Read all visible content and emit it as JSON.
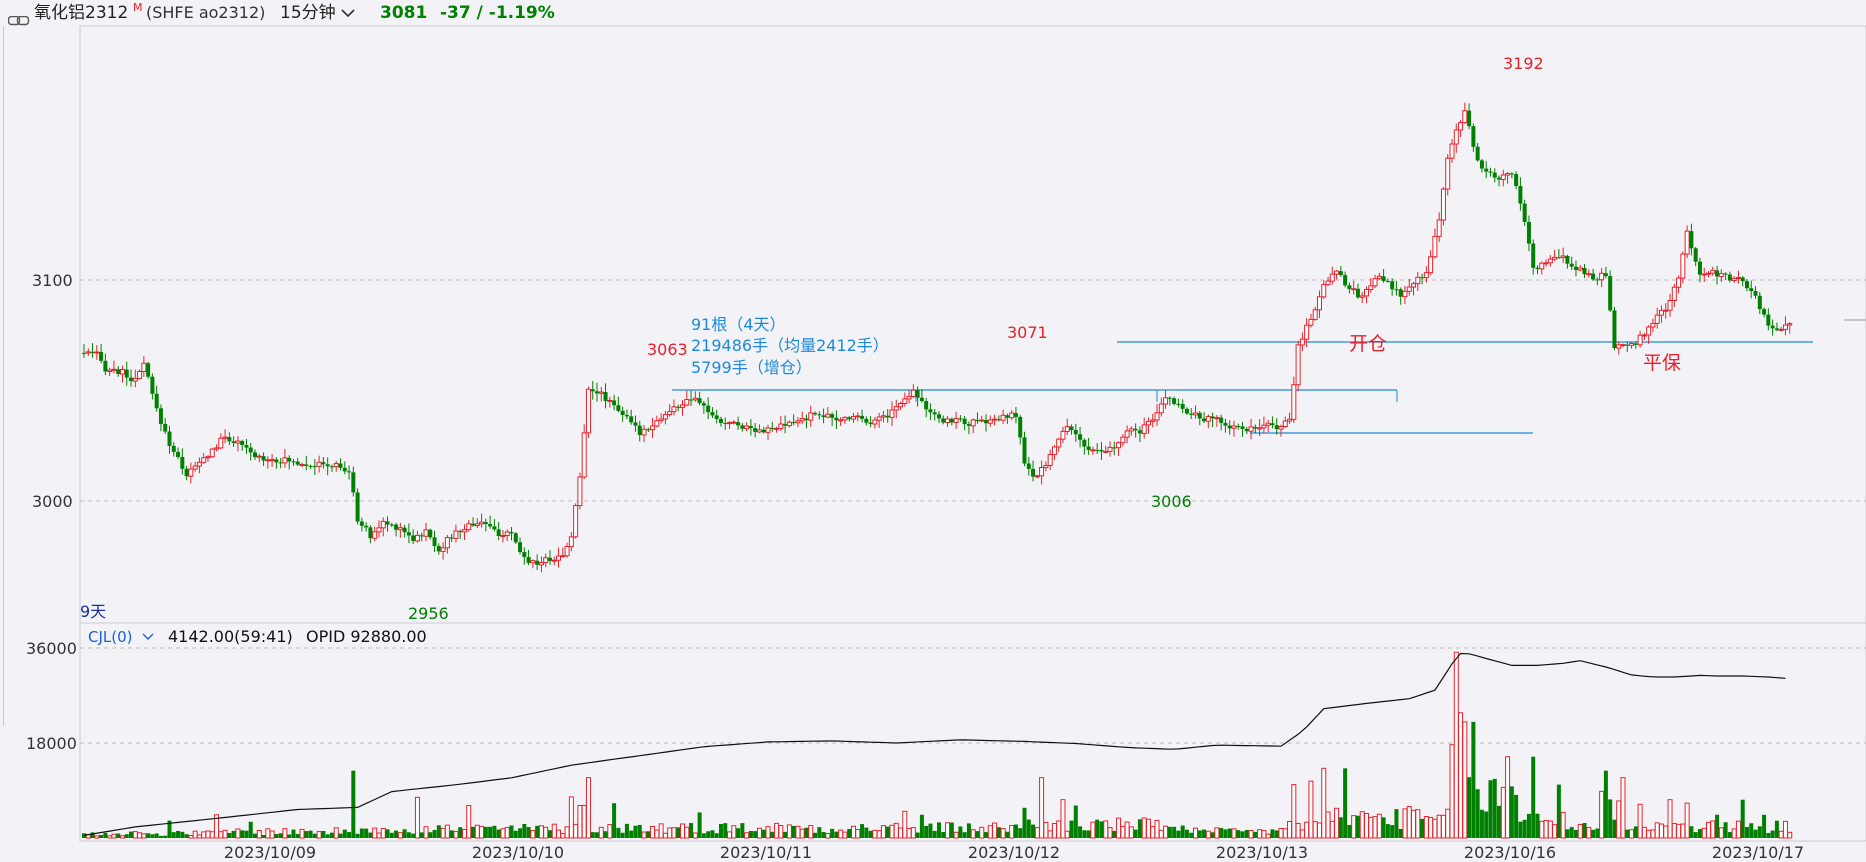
{
  "header": {
    "instrument": "氧化铝2312",
    "m_badge": "M",
    "code": "(SHFE ao2312)",
    "period": "15分钟",
    "price": "3081",
    "change": "-37 / -1.19%"
  },
  "colors": {
    "up": "#e8202a",
    "down": "#008000",
    "accent_blue": "#1c8ad8",
    "grid": "#bcbcbc",
    "bg": "#f3f3f7"
  },
  "period_label": "9天",
  "indicator": {
    "name": "CJL(0)",
    "value_text": "4142.00(59:41)",
    "opid_text": "OPID 92880.00"
  },
  "annotations": {
    "stats_line1": "91根（4天）",
    "stats_line2": "219486手（均量2412手）",
    "stats_line3": "5799手（增仓）",
    "open_label": "开仓",
    "flat_label": "平保",
    "hi_3192": "3192",
    "hi_3071": "3071",
    "hi_3063": "3063",
    "lo_3006": "3006",
    "lo_2956": "2956"
  },
  "chart_data": {
    "type": "candlestick",
    "price_axis": {
      "ticks": [
        3000,
        3100
      ],
      "ylim": [
        2948,
        3200
      ]
    },
    "volume_axis": {
      "ticks": [
        18000,
        36000
      ],
      "ylim": [
        0,
        38000
      ]
    },
    "dates": [
      "2023/10/09",
      "2023/10/10",
      "2023/10/11",
      "2023/10/12",
      "2023/10/13",
      "2023/10/16",
      "2023/10/17"
    ],
    "segments": [
      [
        0,
        3067
      ],
      [
        3,
        3066
      ],
      [
        5,
        3060
      ],
      [
        9,
        3058
      ],
      [
        12,
        3054
      ],
      [
        14,
        3062
      ],
      [
        17,
        3041
      ],
      [
        20,
        3026
      ],
      [
        24,
        3012
      ],
      [
        27,
        3017
      ],
      [
        30,
        3023
      ],
      [
        33,
        3029
      ],
      [
        36,
        3026
      ],
      [
        40,
        3020
      ],
      [
        44,
        3019
      ],
      [
        48,
        3018
      ],
      [
        52,
        3017
      ],
      [
        56,
        3016
      ],
      [
        59,
        3016
      ],
      [
        62,
        3013
      ],
      [
        64,
        2992
      ],
      [
        67,
        2984
      ],
      [
        70,
        2990
      ],
      [
        74,
        2988
      ],
      [
        77,
        2983
      ],
      [
        80,
        2986
      ],
      [
        83,
        2978
      ],
      [
        86,
        2984
      ],
      [
        90,
        2989
      ],
      [
        93,
        2991
      ],
      [
        96,
        2986
      ],
      [
        100,
        2984
      ],
      [
        103,
        2974
      ],
      [
        106,
        2972
      ],
      [
        109,
        2974
      ],
      [
        112,
        2975
      ],
      [
        114,
        2985
      ],
      [
        116,
        3010
      ],
      [
        118,
        3052
      ],
      [
        121,
        3048
      ],
      [
        124,
        3044
      ],
      [
        127,
        3037
      ],
      [
        130,
        3031
      ],
      [
        133,
        3035
      ],
      [
        136,
        3039
      ],
      [
        139,
        3043
      ],
      [
        142,
        3046
      ],
      [
        145,
        3043
      ],
      [
        148,
        3036
      ],
      [
        152,
        3035
      ],
      [
        156,
        3033
      ],
      [
        160,
        3032
      ],
      [
        164,
        3034
      ],
      [
        168,
        3037
      ],
      [
        172,
        3040
      ],
      [
        176,
        3036
      ],
      [
        180,
        3039
      ],
      [
        184,
        3036
      ],
      [
        188,
        3039
      ],
      [
        192,
        3046
      ],
      [
        194,
        3051
      ],
      [
        197,
        3042
      ],
      [
        200,
        3036
      ],
      [
        204,
        3037
      ],
      [
        207,
        3035
      ],
      [
        211,
        3036
      ],
      [
        214,
        3037
      ],
      [
        218,
        3039
      ],
      [
        220,
        3017
      ],
      [
        222,
        3010
      ],
      [
        224,
        3014
      ],
      [
        227,
        3024
      ],
      [
        230,
        3034
      ],
      [
        232,
        3031
      ],
      [
        235,
        3022
      ],
      [
        238,
        3022
      ],
      [
        241,
        3024
      ],
      [
        244,
        3031
      ],
      [
        247,
        3032
      ],
      [
        250,
        3036
      ],
      [
        253,
        3047
      ],
      [
        256,
        3044
      ],
      [
        259,
        3039
      ],
      [
        262,
        3037
      ],
      [
        265,
        3037
      ],
      [
        268,
        3034
      ],
      [
        271,
        3033
      ],
      [
        274,
        3032
      ],
      [
        277,
        3034
      ],
      [
        280,
        3034
      ],
      [
        282,
        3036
      ],
      [
        284,
        3070
      ],
      [
        286,
        3079
      ],
      [
        288,
        3087
      ],
      [
        290,
        3098
      ],
      [
        293,
        3105
      ],
      [
        296,
        3096
      ],
      [
        299,
        3092
      ],
      [
        302,
        3102
      ],
      [
        305,
        3098
      ],
      [
        308,
        3093
      ],
      [
        311,
        3098
      ],
      [
        314,
        3104
      ],
      [
        317,
        3127
      ],
      [
        319,
        3155
      ],
      [
        321,
        3167
      ],
      [
        323,
        3178
      ],
      [
        325,
        3159
      ],
      [
        328,
        3148
      ],
      [
        331,
        3146
      ],
      [
        334,
        3148
      ],
      [
        336,
        3135
      ],
      [
        339,
        3105
      ],
      [
        343,
        3109
      ],
      [
        346,
        3110
      ],
      [
        350,
        3104
      ],
      [
        353,
        3101
      ],
      [
        356,
        3102
      ],
      [
        358,
        3068
      ],
      [
        360,
        3071
      ],
      [
        362,
        3070
      ],
      [
        364,
        3074
      ],
      [
        367,
        3081
      ],
      [
        370,
        3087
      ],
      [
        373,
        3100
      ],
      [
        375,
        3122
      ],
      [
        378,
        3103
      ],
      [
        381,
        3104
      ],
      [
        384,
        3101
      ],
      [
        387,
        3100
      ],
      [
        390,
        3096
      ],
      [
        393,
        3084
      ],
      [
        395,
        3077
      ],
      [
        397,
        3079
      ],
      [
        399,
        3081
      ]
    ],
    "volume_regimes": [
      [
        0,
        0.05
      ],
      [
        33,
        0.07
      ],
      [
        66,
        0.1
      ],
      [
        114,
        0.3
      ],
      [
        118,
        0.11
      ],
      [
        218,
        0.14
      ],
      [
        258,
        0.07
      ],
      [
        280,
        0.14
      ],
      [
        290,
        0.22
      ],
      [
        313,
        0.2
      ],
      [
        320,
        1
      ],
      [
        326,
        0.45
      ],
      [
        336,
        0.22
      ],
      [
        347,
        0.13
      ],
      [
        355,
        0.35
      ],
      [
        360,
        0.13
      ],
      [
        380,
        0.12
      ]
    ],
    "volume_spikes": [
      [
        20,
        0.15
      ],
      [
        31,
        0.2
      ],
      [
        39,
        0.14
      ],
      [
        63,
        0.58
      ],
      [
        78,
        0.35
      ],
      [
        90,
        0.28
      ],
      [
        116,
        0.28
      ],
      [
        118,
        0.52
      ],
      [
        124,
        0.3
      ],
      [
        144,
        0.22
      ],
      [
        192,
        0.23
      ],
      [
        196,
        0.2
      ],
      [
        220,
        0.26
      ],
      [
        224,
        0.52
      ],
      [
        229,
        0.33
      ],
      [
        232,
        0.28
      ],
      [
        283,
        0.46
      ],
      [
        287,
        0.49
      ],
      [
        290,
        0.6
      ],
      [
        295,
        0.6
      ],
      [
        321,
        1.6
      ],
      [
        323,
        1.0
      ],
      [
        325,
        1.0
      ],
      [
        333,
        0.7
      ],
      [
        339,
        0.7
      ],
      [
        345,
        0.46
      ],
      [
        356,
        0.58
      ],
      [
        360,
        0.52
      ],
      [
        364,
        0.29
      ],
      [
        371,
        0.33
      ],
      [
        375,
        0.3
      ],
      [
        382,
        0.2
      ],
      [
        388,
        0.33
      ],
      [
        393,
        0.2
      ]
    ],
    "opid_line": [
      [
        0,
        500
      ],
      [
        12,
        2100
      ],
      [
        33,
        3900
      ],
      [
        50,
        5400
      ],
      [
        64,
        5800
      ],
      [
        72,
        8800
      ],
      [
        86,
        10000
      ],
      [
        100,
        11400
      ],
      [
        114,
        13800
      ],
      [
        130,
        15600
      ],
      [
        145,
        17300
      ],
      [
        160,
        18200
      ],
      [
        175,
        18400
      ],
      [
        190,
        18000
      ],
      [
        205,
        18600
      ],
      [
        220,
        18300
      ],
      [
        232,
        17900
      ],
      [
        245,
        17100
      ],
      [
        255,
        16800
      ],
      [
        265,
        17600
      ],
      [
        280,
        17400
      ],
      [
        285,
        20200
      ],
      [
        290,
        24500
      ],
      [
        300,
        25500
      ],
      [
        310,
        26400
      ],
      [
        316,
        28000
      ],
      [
        320,
        33000
      ],
      [
        321,
        35000
      ],
      [
        324,
        34900
      ],
      [
        329,
        33800
      ],
      [
        334,
        32700
      ],
      [
        340,
        32700
      ],
      [
        346,
        33100
      ],
      [
        350,
        33600
      ],
      [
        356,
        32400
      ],
      [
        362,
        30900
      ],
      [
        367,
        30500
      ],
      [
        372,
        30500
      ],
      [
        378,
        30800
      ],
      [
        382,
        30700
      ],
      [
        388,
        30700
      ],
      [
        394,
        30500
      ],
      [
        399,
        30200
      ]
    ]
  }
}
